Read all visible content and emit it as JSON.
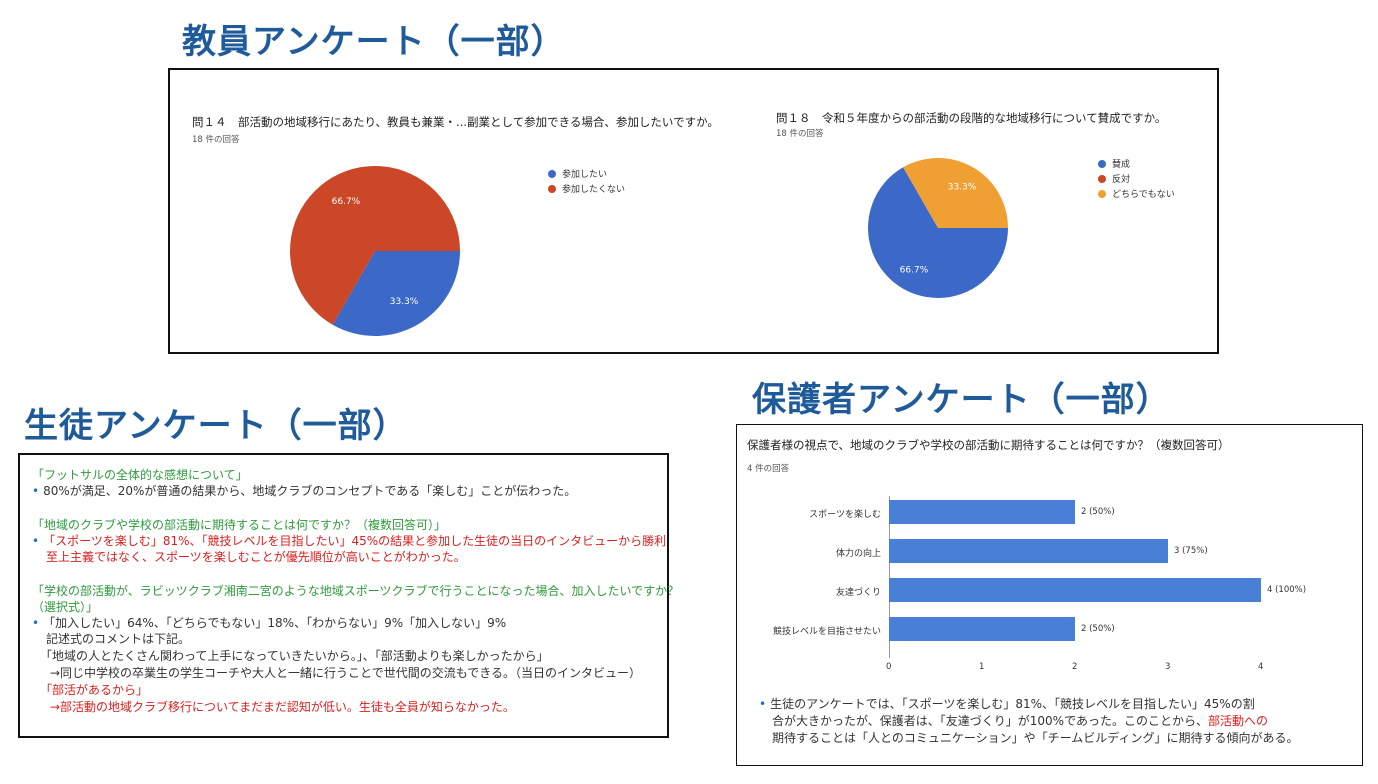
{
  "headings": {
    "teacher": "教員アンケート（一部）",
    "student": "生徒アンケート（一部）",
    "parent": "保護者アンケート（一部）"
  },
  "teacher_survey": {
    "q14": {
      "title": "問１４　部活動の地域移行にあたり、教員も兼業・...副業として参加できる場合、参加したいですか。",
      "count": "18 件の回答",
      "legend": [
        "参加したい",
        "参加したくない"
      ]
    },
    "q18": {
      "title": "問１８　令和５年度からの部活動の段階的な地域移行について賛成ですか。",
      "count": "18 件の回答",
      "legend": [
        "賛成",
        "反対",
        "どちらでもない"
      ]
    }
  },
  "chart_data": [
    {
      "type": "pie",
      "title": "問１４　部活動の地域移行にあたり、教員も兼業・...副業として参加できる場合、参加したいですか。",
      "categories": [
        "参加したい",
        "参加したくない"
      ],
      "values": [
        33.3,
        66.7
      ],
      "labels": [
        "33.3%",
        "66.7%"
      ],
      "colors": [
        "#3c68c8",
        "#cc4628"
      ],
      "legend": "right"
    },
    {
      "type": "pie",
      "title": "問１８　令和５年度からの部活動の段階的な地域移行について賛成ですか。",
      "categories": [
        "賛成",
        "反対",
        "どちらでもない"
      ],
      "values": [
        66.7,
        0,
        33.3
      ],
      "labels": [
        "66.7%",
        "",
        "33.3%"
      ],
      "colors": [
        "#3c68c8",
        "#cc4628",
        "#f0a033"
      ],
      "legend": "right"
    },
    {
      "type": "bar",
      "orientation": "horizontal",
      "title": "保護者様の視点で、地域のクラブや学校の部活動に期待することは何ですか？（複数回答可）",
      "categories": [
        "スポーツを楽しむ",
        "体力の向上",
        "友達づくり",
        "競技レベルを目指させたい"
      ],
      "values": [
        2,
        3,
        4,
        2
      ],
      "value_labels": [
        "2 (50%)",
        "3 (75%)",
        "4 (100%)",
        "2 (50%)"
      ],
      "xlim": [
        0,
        4
      ],
      "xticks": [
        "0",
        "1",
        "2",
        "3",
        "4"
      ],
      "color": "#4a7fd8"
    }
  ],
  "student_survey": {
    "s1_heading": "「フットサルの全体的な感想について」",
    "s1_line1": "80%が満足、20%が普通の結果から、地域クラブのコンセプトである「楽しむ」ことが伝わった。",
    "s2_heading": "「地域のクラブや学校の部活動に期待することは何ですか？（複数回答可）」",
    "s2_line1": "「スポーツを楽しむ」81%、「競技レベルを目指したい」45%の結果と参加した生徒の当日のインタビューから勝利",
    "s2_line2": "至上主義ではなく、スポーツを楽しむことが優先順位が高いことがわかった。",
    "s3_heading1": "「学校の部活動が、ラビッツクラブ湘南二宮のような地域スポーツクラブで行うことになった場合、加入したいですか？",
    "s3_heading2": "（選択式）」",
    "s3_line1": "「加入したい」64%、「どちらでもない」18%、「わからない」9%「加入しない」9%",
    "s3_line2": "記述式のコメントは下記。",
    "s3_line3": "「地域の人とたくさん関わって上手になっていきたいから。」、「部活動よりも楽しかったから」",
    "s3_line4": "→同じ中学校の卒業生の学生コーチや大人と一緒に行うことで世代間の交流もできる。（当日のインタビュー）",
    "s3_line5": "「部活があるから」",
    "s3_line6": "→部活動の地域クラブ移行についてまだまだ認知が低い。生徒も全員が知らなかった。"
  },
  "parent_survey": {
    "title": "保護者様の視点で、地域のクラブや学校の部活動に期待することは何ですか？（複数回答可）",
    "count": "4 件の回答",
    "note_line1": "生徒のアンケートでは、「スポーツを楽しむ」81%、「競技レベルを目指したい」45%の割",
    "note_line2_a": "合が大きかったが、保護者は、「友達づくり」が100%であった。このことから、",
    "note_line2_b": "部活動への",
    "note_line3": "期待することは「人とのコミュニケーション」や「チームビルディング」に期待する傾向がある。"
  }
}
